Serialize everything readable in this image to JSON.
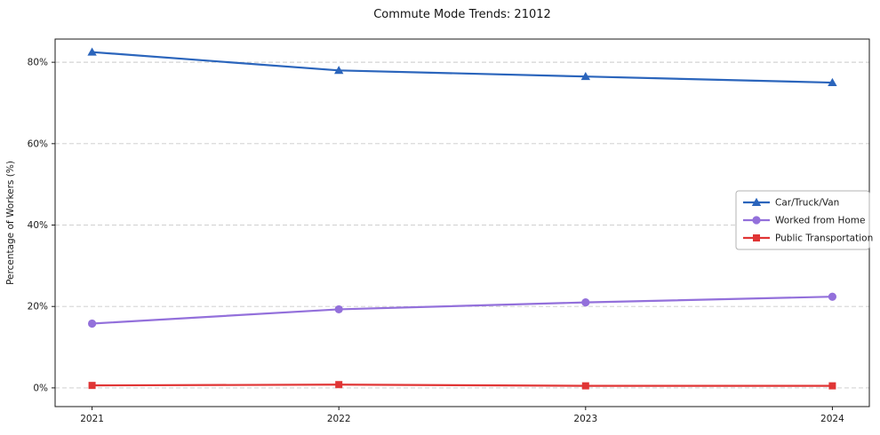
{
  "title": "Commute Mode Trends: 21012",
  "chart_data": {
    "type": "line",
    "title": "Commute Mode Trends: 21012",
    "xlabel": "",
    "ylabel": "Percentage of Workers (%)",
    "x": [
      2021,
      2022,
      2023,
      2024
    ],
    "x_tick_labels": [
      "2021",
      "2022",
      "2023",
      "2024"
    ],
    "y_ticks": [
      0,
      20,
      40,
      60,
      80
    ],
    "y_tick_labels": [
      "0%",
      "20%",
      "40%",
      "60%",
      "80%"
    ],
    "ylim": [
      -4.6,
      85.7
    ],
    "grid": true,
    "grid_style": "dashed",
    "legend_position": "center right",
    "series": [
      {
        "name": "Car/Truck/Van",
        "color": "#2b65bc",
        "marker": "triangle",
        "values": [
          82.5,
          78.0,
          76.5,
          75.0
        ]
      },
      {
        "name": "Worked from Home",
        "color": "#9370db",
        "marker": "circle",
        "values": [
          15.8,
          19.3,
          21.0,
          22.4
        ]
      },
      {
        "name": "Public Transportation",
        "color": "#e03535",
        "marker": "square",
        "values": [
          0.6,
          0.8,
          0.5,
          0.5
        ]
      }
    ]
  }
}
